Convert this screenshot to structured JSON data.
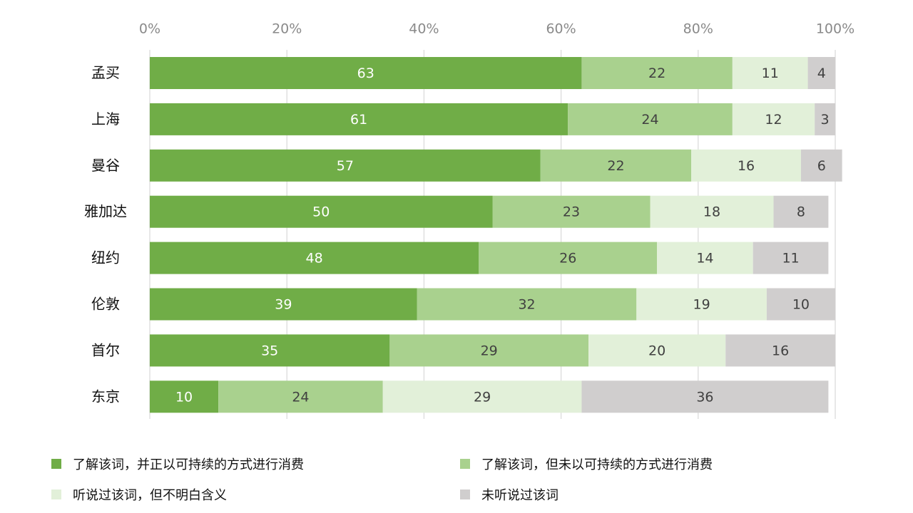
{
  "chart_data": {
    "type": "bar",
    "orientation": "horizontal",
    "stacked": true,
    "percent_axis": true,
    "xlim": [
      0,
      100
    ],
    "x_ticks": [
      0,
      20,
      40,
      60,
      80,
      100
    ],
    "x_tick_labels": [
      "0%",
      "20%",
      "40%",
      "60%",
      "80%",
      "100%"
    ],
    "x_axis_position": "top",
    "grid": true,
    "legend_position": "bottom",
    "categories": [
      "孟买",
      "上海",
      "曼谷",
      "雅加达",
      "纽约",
      "伦敦",
      "首尔",
      "东京"
    ],
    "series": [
      {
        "name": "了解该词，并正以可持续的方式进行消费",
        "color": "#70ad47",
        "label_color": "#ffffff",
        "values": [
          63,
          61,
          57,
          50,
          48,
          39,
          35,
          10
        ]
      },
      {
        "name": "了解该词，但未以可持续的方式进行消费",
        "color": "#a9d18e",
        "label_color": "#404040",
        "values": [
          22,
          24,
          22,
          23,
          26,
          32,
          29,
          24
        ]
      },
      {
        "name": "听说过该词，但不明白含义",
        "color": "#e2f0d9",
        "label_color": "#404040",
        "values": [
          11,
          12,
          16,
          18,
          14,
          19,
          20,
          29
        ]
      },
      {
        "name": "未听说过该词",
        "color": "#d0cece",
        "label_color": "#404040",
        "values": [
          4,
          3,
          6,
          8,
          11,
          10,
          16,
          36
        ]
      }
    ]
  }
}
